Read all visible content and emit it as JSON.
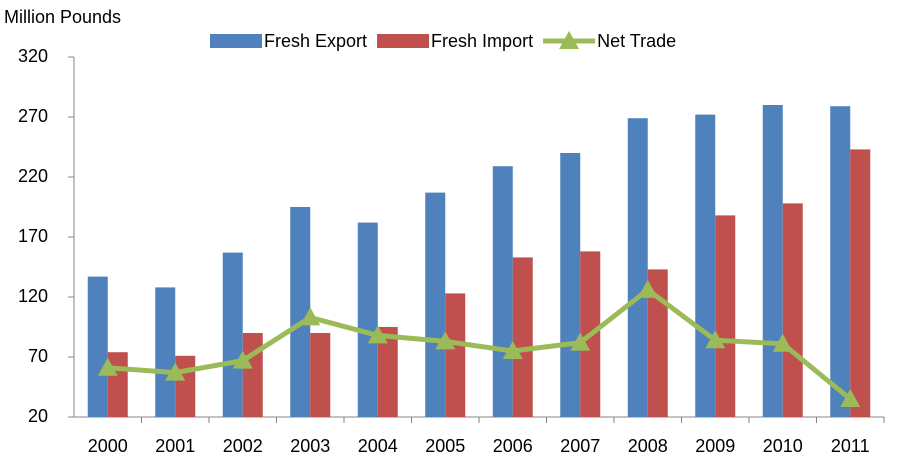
{
  "chart_data": {
    "type": "bar_line",
    "y_axis_label": "Million Pounds",
    "categories": [
      "2000",
      "2001",
      "2002",
      "2003",
      "2004",
      "2005",
      "2006",
      "2007",
      "2008",
      "2009",
      "2010",
      "2011"
    ],
    "series": [
      {
        "name": "Fresh Export",
        "color": "#4f81bd",
        "kind": "bar",
        "values": [
          137,
          128,
          157,
          195,
          182,
          207,
          229,
          240,
          269,
          272,
          280,
          279
        ]
      },
      {
        "name": "Fresh Import",
        "color": "#c0504d",
        "kind": "bar",
        "values": [
          74,
          71,
          90,
          90,
          95,
          123,
          153,
          158,
          143,
          188,
          198,
          243
        ]
      },
      {
        "name": "Net Trade",
        "color": "#9bbb59",
        "kind": "line",
        "values": [
          61,
          57,
          67,
          103,
          88,
          83,
          75,
          82,
          126,
          84,
          81,
          35
        ]
      }
    ],
    "ylim": [
      20,
      320
    ],
    "yticks": [
      20,
      70,
      120,
      170,
      220,
      270,
      320
    ]
  }
}
